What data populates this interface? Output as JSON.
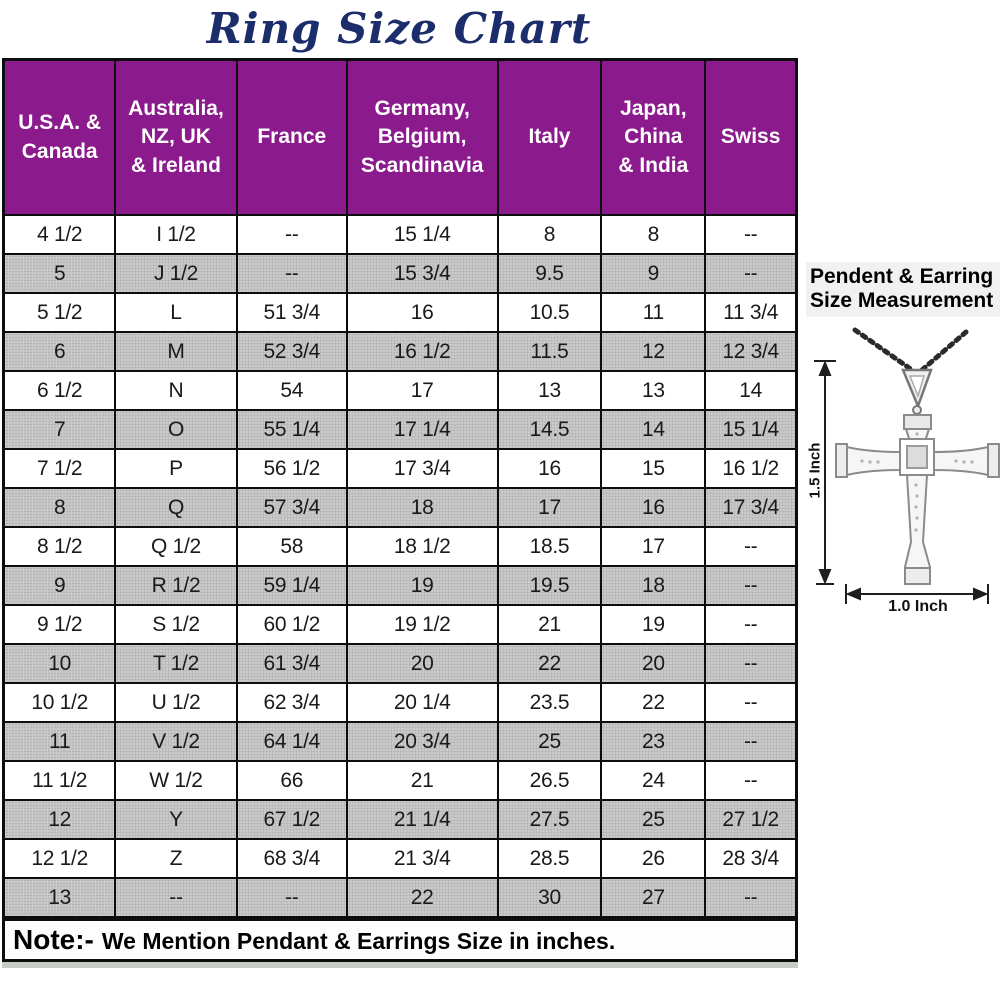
{
  "title": "Ring Size Chart",
  "chart_data": {
    "type": "table",
    "title": "Ring Size Chart",
    "columns": [
      "U.S.A. &\nCanada",
      "Australia,\nNZ, UK\n& Ireland",
      "France",
      "Germany,\nBelgium,\nScandinavia",
      "Italy",
      "Japan,\nChina\n& India",
      "Swiss"
    ],
    "rows": [
      [
        "4 1/2",
        "I 1/2",
        "--",
        "15 1/4",
        "8",
        "8",
        "--"
      ],
      [
        "5",
        "J 1/2",
        "--",
        "15 3/4",
        "9.5",
        "9",
        "--"
      ],
      [
        "5 1/2",
        "L",
        "51 3/4",
        "16",
        "10.5",
        "11",
        "11 3/4"
      ],
      [
        "6",
        "M",
        "52 3/4",
        "16 1/2",
        "11.5",
        "12",
        "12 3/4"
      ],
      [
        "6 1/2",
        "N",
        "54",
        "17",
        "13",
        "13",
        "14"
      ],
      [
        "7",
        "O",
        "55 1/4",
        "17 1/4",
        "14.5",
        "14",
        "15 1/4"
      ],
      [
        "7 1/2",
        "P",
        "56 1/2",
        "17 3/4",
        "16",
        "15",
        "16 1/2"
      ],
      [
        "8",
        "Q",
        "57 3/4",
        "18",
        "17",
        "16",
        "17 3/4"
      ],
      [
        "8 1/2",
        "Q 1/2",
        "58",
        "18 1/2",
        "18.5",
        "17",
        "--"
      ],
      [
        "9",
        "R 1/2",
        "59 1/4",
        "19",
        "19.5",
        "18",
        "--"
      ],
      [
        "9 1/2",
        "S 1/2",
        "60 1/2",
        "19 1/2",
        "21",
        "19",
        "--"
      ],
      [
        "10",
        "T 1/2",
        "61 3/4",
        "20",
        "22",
        "20",
        "--"
      ],
      [
        "10 1/2",
        "U 1/2",
        "62 3/4",
        "20 1/4",
        "23.5",
        "22",
        "--"
      ],
      [
        "11",
        "V 1/2",
        "64 1/4",
        "20 3/4",
        "25",
        "23",
        "--"
      ],
      [
        "11 1/2",
        "W 1/2",
        "66",
        "21",
        "26.5",
        "24",
        "--"
      ],
      [
        "12",
        "Y",
        "67 1/2",
        "21 1/4",
        "27.5",
        "25",
        "27 1/2"
      ],
      [
        "12 1/2",
        "Z",
        "68 3/4",
        "21 3/4",
        "28.5",
        "26",
        "28 3/4"
      ],
      [
        "13",
        "--",
        "--",
        "22",
        "30",
        "27",
        "--"
      ]
    ]
  },
  "note": {
    "label": "Note:-",
    "text": "We Mention Pendant & Earrings Size in inches."
  },
  "measurement_panel": {
    "heading": "Pendent & Earring\nSize Measurement",
    "height_label": "1.5 Inch",
    "width_label": "1.0 Inch"
  },
  "colors": {
    "header_purple": "#8b1b8c",
    "title_navy": "#1c2d6b",
    "alt_row_gray": "#cacaca",
    "border_black": "#0d0d0d"
  }
}
